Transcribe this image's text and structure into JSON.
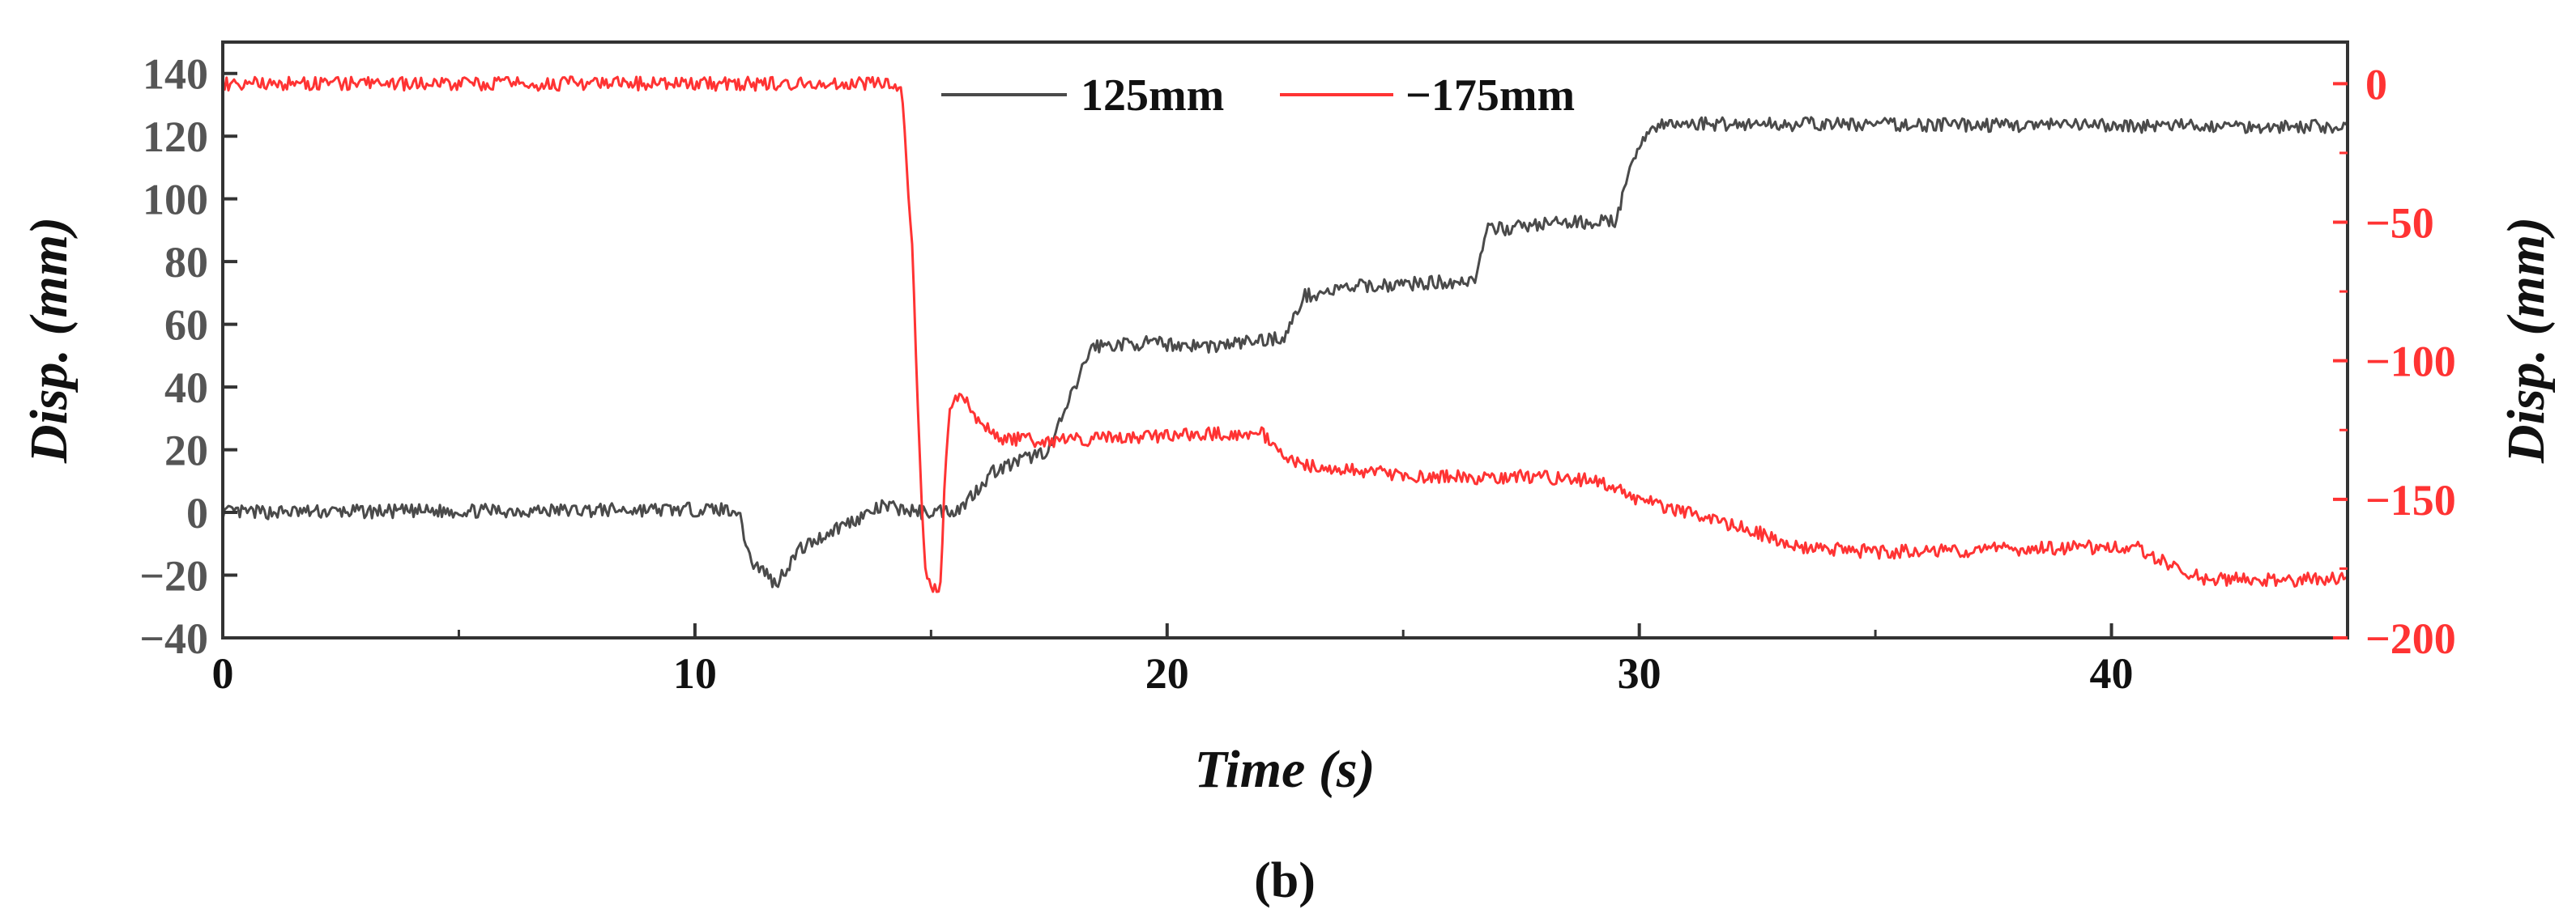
{
  "chart_data": {
    "type": "line",
    "caption": "(b)",
    "xlabel": "Time (s)",
    "ylabel_left": "Disp. (mm)",
    "ylabel_right": "Disp. (mm)",
    "xlim": [
      0,
      45
    ],
    "ylim_left": [
      -40,
      150
    ],
    "ylim_right": [
      -200,
      15
    ],
    "xticks": [
      0,
      10,
      20,
      30,
      40
    ],
    "yticks_left": [
      -40,
      -20,
      0,
      20,
      40,
      60,
      80,
      100,
      120,
      140
    ],
    "yticks_right": [
      -200,
      -150,
      -100,
      -50,
      0
    ],
    "grid": false,
    "legend_position": "top-center",
    "colors": {
      "series1": "#4a4a4a",
      "series2": "#ff3333",
      "right_axis": "#ff3333",
      "left_axis": "#555555"
    },
    "series": [
      {
        "name": "125mm",
        "axis": "left",
        "noise": 2.2,
        "points": [
          [
            0,
            0
          ],
          [
            10.9,
            1
          ],
          [
            11.2,
            -16
          ],
          [
            11.5,
            -19
          ],
          [
            11.7,
            -23
          ],
          [
            12.2,
            -12
          ],
          [
            13,
            -5
          ],
          [
            14,
            2
          ],
          [
            14.8,
            0
          ],
          [
            15.6,
            1
          ],
          [
            16.3,
            13
          ],
          [
            17.5,
            20
          ],
          [
            18,
            38
          ],
          [
            18.4,
            53
          ],
          [
            19.5,
            54
          ],
          [
            21,
            53
          ],
          [
            22.5,
            56
          ],
          [
            22.9,
            69
          ],
          [
            24,
            72
          ],
          [
            26.5,
            74
          ],
          [
            26.8,
            90
          ],
          [
            28,
            92
          ],
          [
            29.5,
            93
          ],
          [
            30,
            118
          ],
          [
            30.3,
            123
          ],
          [
            31,
            124
          ],
          [
            45,
            123
          ]
        ]
      },
      {
        "name": "−175mm",
        "axis": "right",
        "noise": 2.5,
        "points": [
          [
            0,
            0
          ],
          [
            14.3,
            0
          ],
          [
            14.4,
            -5
          ],
          [
            14.6,
            -60
          ],
          [
            14.8,
            -150
          ],
          [
            14.9,
            -180
          ],
          [
            15.2,
            -182
          ],
          [
            15.3,
            -140
          ],
          [
            15.4,
            -115
          ],
          [
            15.7,
            -112
          ],
          [
            16,
            -122
          ],
          [
            16.5,
            -128
          ],
          [
            17.5,
            -129
          ],
          [
            20,
            -127
          ],
          [
            22,
            -126
          ],
          [
            22.5,
            -136
          ],
          [
            23.5,
            -139
          ],
          [
            25.5,
            -142
          ],
          [
            28,
            -142
          ],
          [
            29,
            -143
          ],
          [
            30,
            -150
          ],
          [
            31,
            -155
          ],
          [
            32.5,
            -162
          ],
          [
            33.3,
            -167
          ],
          [
            35,
            -169
          ],
          [
            40.5,
            -167
          ],
          [
            41.3,
            -174
          ],
          [
            42,
            -179
          ],
          [
            45,
            -179
          ]
        ]
      }
    ]
  }
}
